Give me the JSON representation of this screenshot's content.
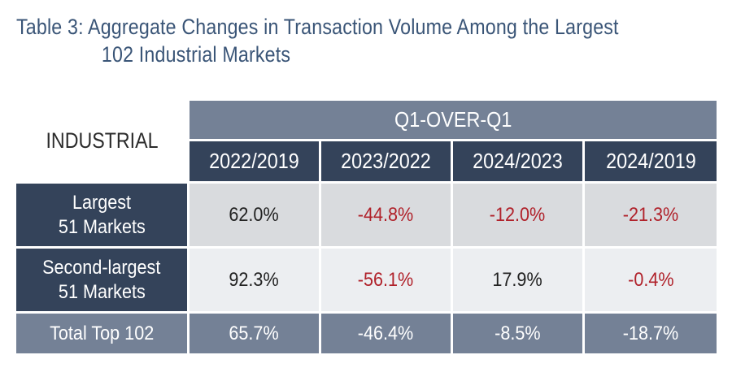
{
  "title": {
    "line1": "Table 3: Aggregate Changes in Transaction Volume Among the Largest",
    "line2": "102 Industrial Markets"
  },
  "table": {
    "corner_label": "INDUSTRIAL",
    "group_header": "Q1-OVER-Q1",
    "columns": [
      "2022/2019",
      "2023/2022",
      "2024/2023",
      "2024/2019"
    ],
    "rows": [
      {
        "label_line1": "Largest",
        "label_line2": "51 Markets",
        "values": [
          "62.0%",
          "-44.8%",
          "-12.0%",
          "-21.3%"
        ]
      },
      {
        "label_line1": "Second-largest",
        "label_line2": "51 Markets",
        "values": [
          "92.3%",
          "-56.1%",
          "17.9%",
          "-0.4%"
        ]
      }
    ],
    "total_row": {
      "label": "Total Top 102",
      "values": [
        "65.7%",
        "-46.4%",
        "-8.5%",
        "-18.7%"
      ]
    }
  },
  "colors": {
    "title": "#3a5577",
    "header_dark": "#34435a",
    "header_light": "#748196",
    "negative": "#b0212a"
  }
}
